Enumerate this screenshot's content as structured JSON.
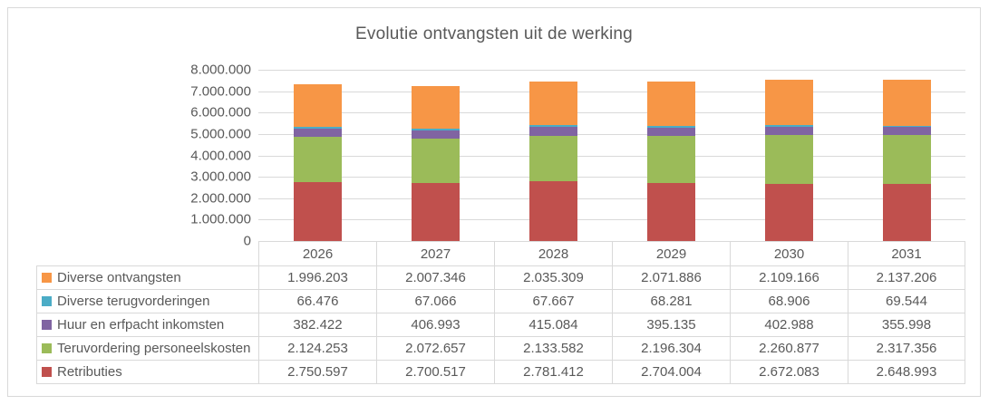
{
  "title": "Evolutie ontvangsten uit de werking",
  "colors": {
    "text": "#595959",
    "gridline": "#D9D9D9",
    "table_border": "#D9D9D9",
    "frame_border": "#D9D9D9",
    "series_retributies": "#C0504D",
    "series_teruvordering_personeelskosten": "#9BBB59",
    "series_huur_en_erfpacht": "#8064A2",
    "series_diverse_terugvorderingen": "#4BACC6",
    "series_diverse_ontvangsten": "#F79646"
  },
  "y_axis": {
    "tick_labels": [
      "8.000.000",
      "7.000.000",
      "6.000.000",
      "5.000.000",
      "4.000.000",
      "3.000.000",
      "2.000.000",
      "1.000.000",
      "0"
    ]
  },
  "chart_data": {
    "type": "bar",
    "stacked": true,
    "title": "Evolutie ontvangsten uit de werking",
    "categories": [
      "2026",
      "2027",
      "2028",
      "2029",
      "2030",
      "2031"
    ],
    "series": [
      {
        "name": "Retributies",
        "color": "#C0504D",
        "values": [
          2750597,
          2700517,
          2781412,
          2704004,
          2672083,
          2648993
        ]
      },
      {
        "name": "Teruvordering personeelskosten",
        "color": "#9BBB59",
        "values": [
          2124253,
          2072657,
          2133582,
          2196304,
          2260877,
          2317356
        ]
      },
      {
        "name": "Huur en erfpacht inkomsten",
        "color": "#8064A2",
        "values": [
          382422,
          406993,
          415084,
          395135,
          402988,
          355998
        ]
      },
      {
        "name": "Diverse terugvorderingen",
        "color": "#4BACC6",
        "values": [
          66476,
          67066,
          67667,
          68281,
          68906,
          69544
        ]
      },
      {
        "name": "Diverse ontvangsten",
        "color": "#F79646",
        "values": [
          1996203,
          2007346,
          2035309,
          2071886,
          2109166,
          2137206
        ]
      }
    ],
    "xlabel": "",
    "ylabel": "",
    "ylim": [
      0,
      8000000
    ],
    "ytick_step": 1000000,
    "grid": true,
    "legend_position": "data-table-left"
  },
  "table": {
    "header": [
      "2026",
      "2027",
      "2028",
      "2029",
      "2030",
      "2031"
    ],
    "rows": [
      {
        "label": "Diverse ontvangsten",
        "color": "#F79646",
        "values": [
          "1.996.203",
          "2.007.346",
          "2.035.309",
          "2.071.886",
          "2.109.166",
          "2.137.206"
        ]
      },
      {
        "label": "Diverse terugvorderingen",
        "color": "#4BACC6",
        "values": [
          "66.476",
          "67.066",
          "67.667",
          "68.281",
          "68.906",
          "69.544"
        ]
      },
      {
        "label": "Huur en erfpacht inkomsten",
        "color": "#8064A2",
        "values": [
          "382.422",
          "406.993",
          "415.084",
          "395.135",
          "402.988",
          "355.998"
        ]
      },
      {
        "label": "Teruvordering personeelskosten",
        "color": "#9BBB59",
        "values": [
          "2.124.253",
          "2.072.657",
          "2.133.582",
          "2.196.304",
          "2.260.877",
          "2.317.356"
        ]
      },
      {
        "label": "Retributies",
        "color": "#C0504D",
        "values": [
          "2.750.597",
          "2.700.517",
          "2.781.412",
          "2.704.004",
          "2.672.083",
          "2.648.993"
        ]
      }
    ]
  }
}
